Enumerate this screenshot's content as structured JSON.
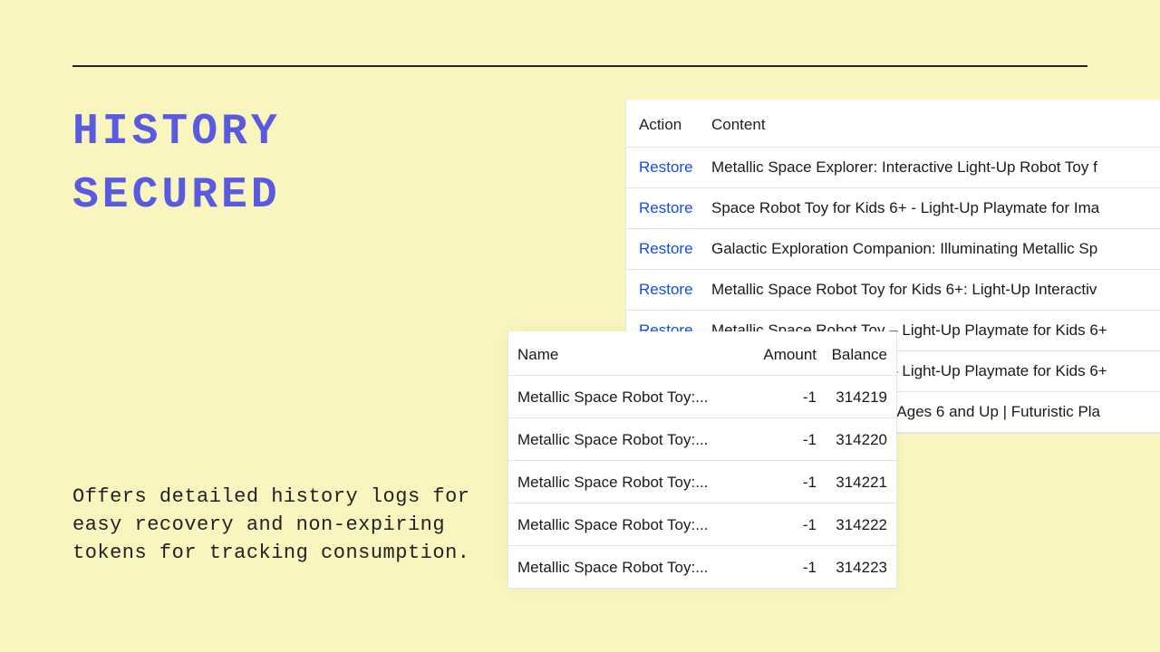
{
  "headline_line1": "HISTORY",
  "headline_line2": "SECURED",
  "description": "Offers detailed history logs for easy recovery and non-expiring tokens for tracking consumption.",
  "history": {
    "headers": {
      "action": "Action",
      "content": "Content"
    },
    "restore_label": "Restore",
    "rows": [
      {
        "content": "Metallic Space Explorer: Interactive Light-Up Robot Toy f"
      },
      {
        "content": "Space Robot Toy for Kids 6+ - Light-Up Playmate for Ima"
      },
      {
        "content": "Galactic Exploration Companion: Illuminating Metallic Sp"
      },
      {
        "content": "Metallic Space Robot Toy for Kids 6+: Light-Up Interactiv"
      },
      {
        "content": "Metallic Space Robot Toy – Light-Up Playmate for Kids 6+"
      },
      {
        "content": "Metallic Space Robot Toy – Light-Up Playmate for Kids 6+"
      },
      {
        "content": "Metallic Space Robot Toy | Ages 6 and Up | Futuristic Pla"
      }
    ]
  },
  "balance": {
    "headers": {
      "name": "Name",
      "amount": "Amount",
      "balance": "Balance"
    },
    "rows": [
      {
        "name": "Metallic Space Robot Toy:...",
        "amount": "-1",
        "balance": "314219"
      },
      {
        "name": "Metallic Space Robot Toy:...",
        "amount": "-1",
        "balance": "314220"
      },
      {
        "name": "Metallic Space Robot Toy:...",
        "amount": "-1",
        "balance": "314221"
      },
      {
        "name": "Metallic Space Robot Toy:...",
        "amount": "-1",
        "balance": "314222"
      },
      {
        "name": "Metallic Space Robot Toy:...",
        "amount": "-1",
        "balance": "314223"
      }
    ]
  }
}
